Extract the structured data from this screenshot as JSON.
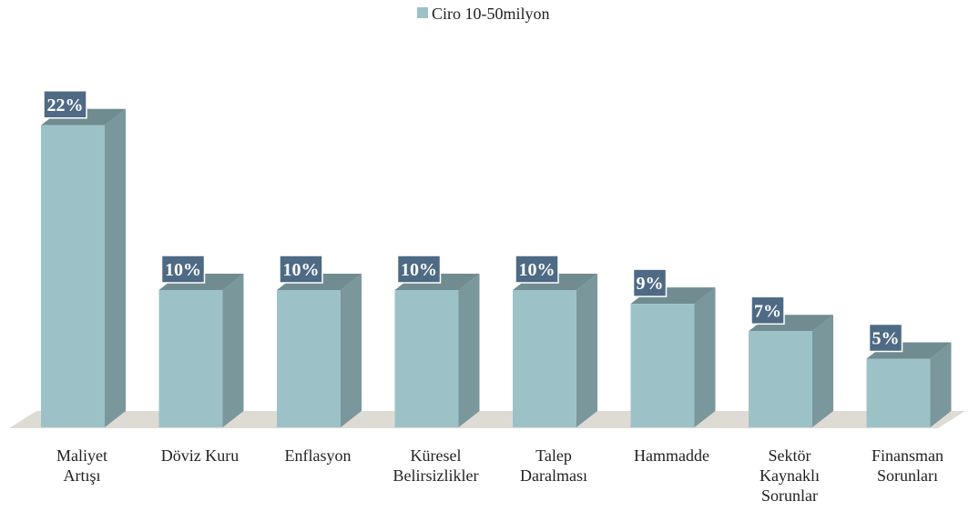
{
  "chart_data": {
    "type": "bar3d",
    "categories": [
      "Maliyet\nArtışı",
      "Döviz Kuru",
      "Enflasyon",
      "Küresel\nBelirsizlikler",
      "Talep\nDaralması",
      "Hammadde",
      "Sektör\nKaynaklı\nSorunlar",
      "Finansman\nSorunları"
    ],
    "series": [
      {
        "name": "Ciro 10-50milyon",
        "color": "#9cc2c8",
        "values": [
          22,
          10,
          10,
          10,
          10,
          9,
          7,
          5
        ],
        "value_labels": [
          "22%",
          "10%",
          "10%",
          "10%",
          "10%",
          "9%",
          "7%",
          "5%"
        ]
      }
    ],
    "legend": "top"
  }
}
